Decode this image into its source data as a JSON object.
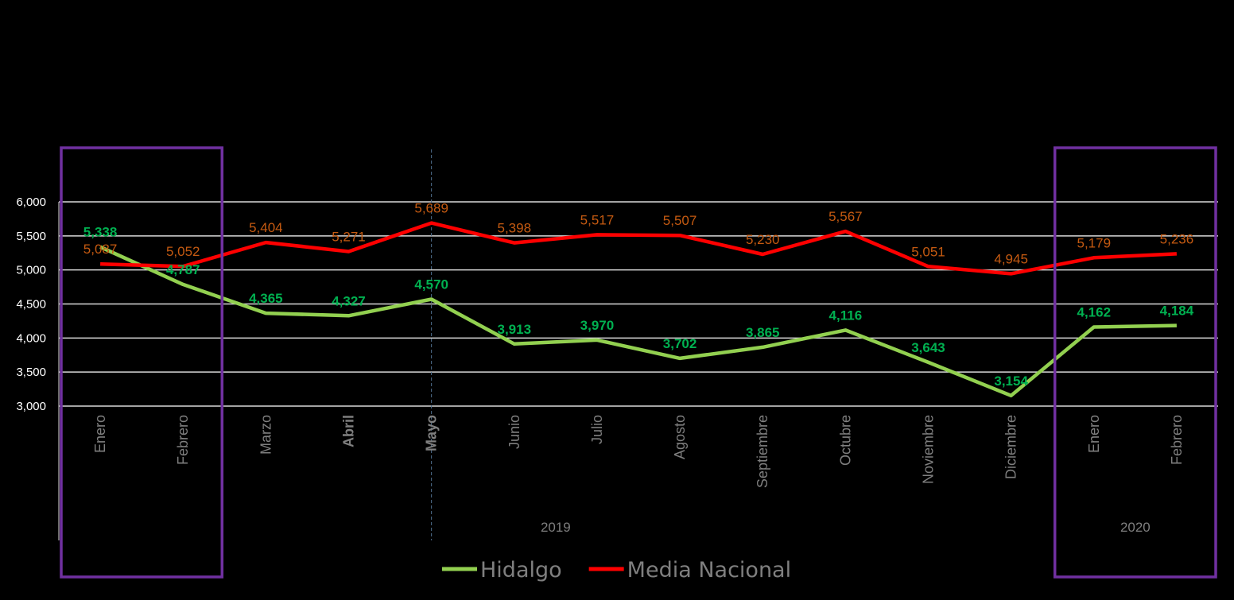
{
  "chart_data": {
    "type": "line",
    "title": "",
    "xlabel": "",
    "ylabel": "",
    "ylim": [
      3000,
      6000
    ],
    "yticks": [
      "3,000",
      "3,500",
      "4,000",
      "4,500",
      "5,000",
      "5,500",
      "6,000"
    ],
    "ytick_values": [
      3000,
      3500,
      4000,
      4500,
      5000,
      5500,
      6000
    ],
    "grid": true,
    "legend_position": "bottom-center",
    "categories": [
      "Enero",
      "Febrero",
      "Marzo",
      "Abril",
      "Mayo",
      "Junio",
      "Julio",
      "Agosto",
      "Septiembre",
      "Octubre",
      "Noviembre",
      "Diciembre",
      "Enero",
      "Febrero"
    ],
    "bold_categories": [
      3,
      4
    ],
    "year_groups": [
      {
        "label": "2019",
        "from": 0,
        "to": 11
      },
      {
        "label": "2020",
        "from": 12,
        "to": 13
      }
    ],
    "highlight_boxes": [
      [
        0,
        1
      ],
      [
        12,
        13
      ]
    ],
    "series": [
      {
        "name": "Hidalgo",
        "color": "#92d050",
        "label_color": "#00b050",
        "values": [
          5338,
          4787,
          4365,
          4327,
          4570,
          3913,
          3970,
          3702,
          3865,
          4116,
          3643,
          3154,
          4162,
          4184
        ],
        "labels": [
          "5,338",
          "4,787",
          "4,365",
          "4,327",
          "4,570",
          "3,913",
          "3,970",
          "3,702",
          "3,865",
          "4,116",
          "3,643",
          "3,154",
          "4,162",
          "4,184"
        ]
      },
      {
        "name": "Media Nacional",
        "color": "#ff0000",
        "label_color": "#c55a11",
        "values": [
          5087,
          5052,
          5404,
          5271,
          5689,
          5398,
          5517,
          5507,
          5230,
          5567,
          5051,
          4945,
          5179,
          5236
        ],
        "labels": [
          "5,087",
          "5,052",
          "5,404",
          "5,271",
          "5,689",
          "5,398",
          "5,517",
          "5,507",
          "5,230",
          "5,567",
          "5,051",
          "4,945",
          "5,179",
          "5,236"
        ]
      }
    ],
    "box_color": "#7030a0"
  }
}
